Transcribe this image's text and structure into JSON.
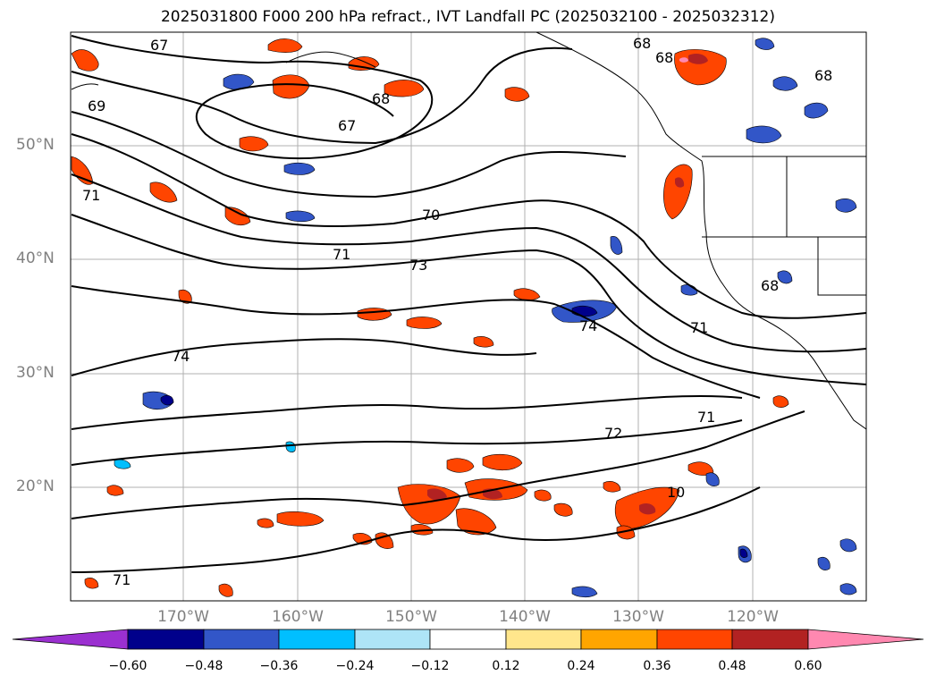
{
  "figure": {
    "title": "2025031800 F000 200 hPa refract., IVT Landfall PC (2025032100 - 2025032312)"
  },
  "map": {
    "lat_labels": [
      "50°N",
      "40°N",
      "30°N",
      "20°N"
    ],
    "lon_labels": [
      "170°W",
      "160°W",
      "150°W",
      "140°W",
      "130°W",
      "120°W"
    ],
    "grid": true,
    "contour_labels": [
      "67",
      "67",
      "68",
      "68",
      "68",
      "68",
      "68",
      "69",
      "70",
      "71",
      "71",
      "71",
      "71",
      "71",
      "72",
      "73",
      "74",
      "74",
      "10"
    ]
  },
  "colorbar": {
    "tick_labels": [
      "−0.60",
      "−0.48",
      "−0.36",
      "−0.24",
      "−0.12",
      "0.12",
      "0.24",
      "0.36",
      "0.48",
      "0.60"
    ],
    "colors": [
      "#9b30d0",
      "#00008b",
      "#3256c8",
      "#00bfff",
      "#aee4f7",
      "#ffffff",
      "#ffe68c",
      "#ffa500",
      "#ff4500",
      "#b22222",
      "#ff88b0"
    ]
  }
}
